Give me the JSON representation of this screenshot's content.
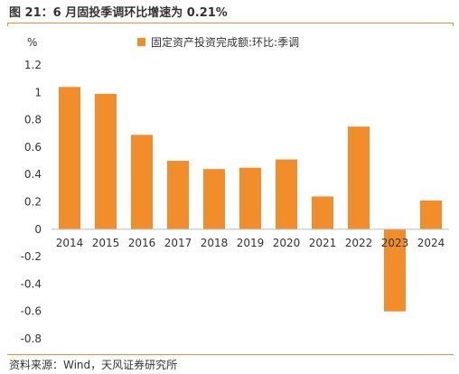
{
  "header": {
    "title": "图 21：6 月固投季调环比增速为 0.21%"
  },
  "footer": {
    "source": "资料来源：Wind，天风证券研究所"
  },
  "chart_data": {
    "type": "bar",
    "unit_label": "%",
    "categories": [
      "2014",
      "2015",
      "2016",
      "2017",
      "2018",
      "2019",
      "2020",
      "2021",
      "2022",
      "2023",
      "2024"
    ],
    "series": [
      {
        "name": "固定资产投资完成额:环比:季调",
        "color": "#f28d2c",
        "values": [
          1.04,
          0.99,
          0.69,
          0.5,
          0.44,
          0.45,
          0.51,
          0.24,
          0.75,
          -0.6,
          0.21
        ]
      }
    ],
    "ylim": [
      -0.8,
      1.2
    ],
    "yticks": [
      -0.8,
      -0.6,
      -0.4,
      -0.2,
      0,
      0.2,
      0.4,
      0.6,
      0.8,
      1,
      1.2
    ],
    "grid": false,
    "legend_position": "top"
  }
}
